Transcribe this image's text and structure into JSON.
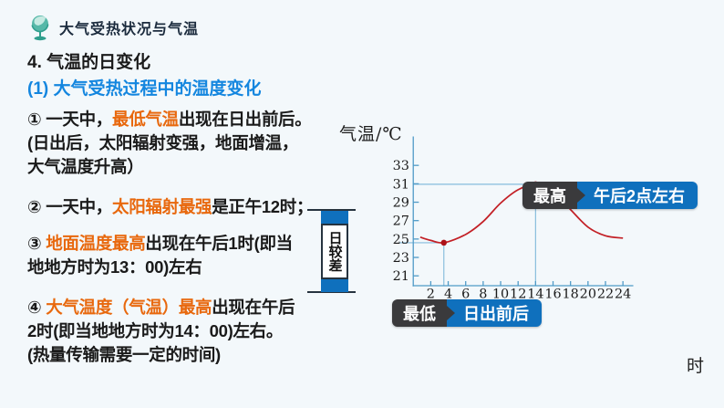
{
  "header": {
    "title": "大气受热状况与气温",
    "icon": "globe-icon"
  },
  "headings": {
    "h1": "4. 气温的日变化",
    "h2": "(1) 大气受热过程中的温度变化"
  },
  "notes": [
    {
      "pre": "① 一天中，",
      "hl": "最低气温",
      "post": "出现在日出前后。",
      "extra": [
        "(日出后，太阳辐射变强，地面增温，",
        "大气温度升高）"
      ]
    },
    {
      "pre": "② 一天中，",
      "hl": "太阳辐射最强",
      "post": "是正午12时；",
      "extra": []
    },
    {
      "pre": "③ ",
      "hl": "地面温度最高",
      "post": "出现在午后1时(即当",
      "extra": [
        "地地方时为13：00)左右"
      ]
    },
    {
      "pre": "④ ",
      "hl": "大气温度（气温）最高",
      "post": "出现在午后",
      "extra": [
        "2时(即当地地方时为14：00)左右。",
        "(热量传输需要一定的时间)"
      ]
    }
  ],
  "colors": {
    "accent_orange": "#e8680d",
    "accent_blue": "#1486df",
    "axis_blue": "#4f9ac7",
    "guide_blue": "#85bcdc",
    "curve_red": "#c32026",
    "dot_red": "#ad1218",
    "callout_dark": "#3a3a3c",
    "callout_blue": "#0f70bd"
  },
  "chart_data": {
    "type": "line",
    "title": "气温日变化曲线",
    "ylabel": "气温/℃",
    "xlabel": "时",
    "x": [
      0.8,
      2,
      3.5,
      6,
      8,
      10,
      12,
      14,
      16,
      18,
      20,
      22,
      24
    ],
    "values": [
      25.2,
      24.85,
      24.6,
      25.5,
      26.9,
      28.9,
      30.35,
      30.95,
      30.15,
      28.2,
      26.3,
      25.35,
      25.1
    ],
    "xticks": [
      2,
      4,
      6,
      8,
      10,
      12,
      14,
      16,
      18,
      20,
      22,
      24
    ],
    "yticks": [
      21,
      23,
      25,
      27,
      29,
      31,
      33
    ],
    "xlim": [
      0,
      25
    ],
    "ylim": [
      19.9,
      36
    ],
    "grid": false,
    "range_label": "日较差",
    "annotations": [
      {
        "name": "max",
        "x": 14,
        "y": 30.95,
        "tag": "最高",
        "text": "午后2点左右"
      },
      {
        "name": "min",
        "x": 3.5,
        "y": 24.6,
        "tag": "最低",
        "text": "日出前后"
      }
    ]
  }
}
